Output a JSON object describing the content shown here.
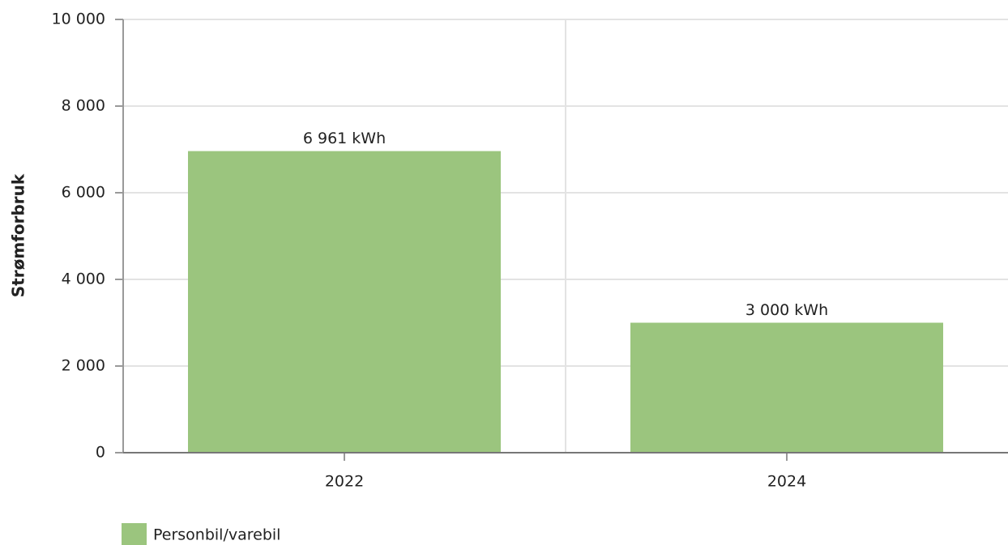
{
  "chart_data": {
    "type": "bar",
    "ylabel": "Strømforbruk",
    "categories": [
      "2022",
      "2024"
    ],
    "series": [
      {
        "name": "Personbil/varebil",
        "color": "#9bc57e",
        "values": [
          6961,
          3000
        ],
        "value_labels": [
          "6 961 kWh",
          "3 000 kWh"
        ]
      }
    ],
    "ylim": [
      0,
      10000
    ],
    "yticks": [
      0,
      {
        "value": 2000,
        "label": "2 000"
      },
      {
        "value": 4000,
        "label": "4 000"
      },
      {
        "value": 6000,
        "label": "6 000"
      },
      {
        "value": 8000,
        "label": "8 000"
      },
      {
        "value": 10000,
        "label": "10 000"
      }
    ],
    "grid": true,
    "legend": "bottom-left"
  }
}
